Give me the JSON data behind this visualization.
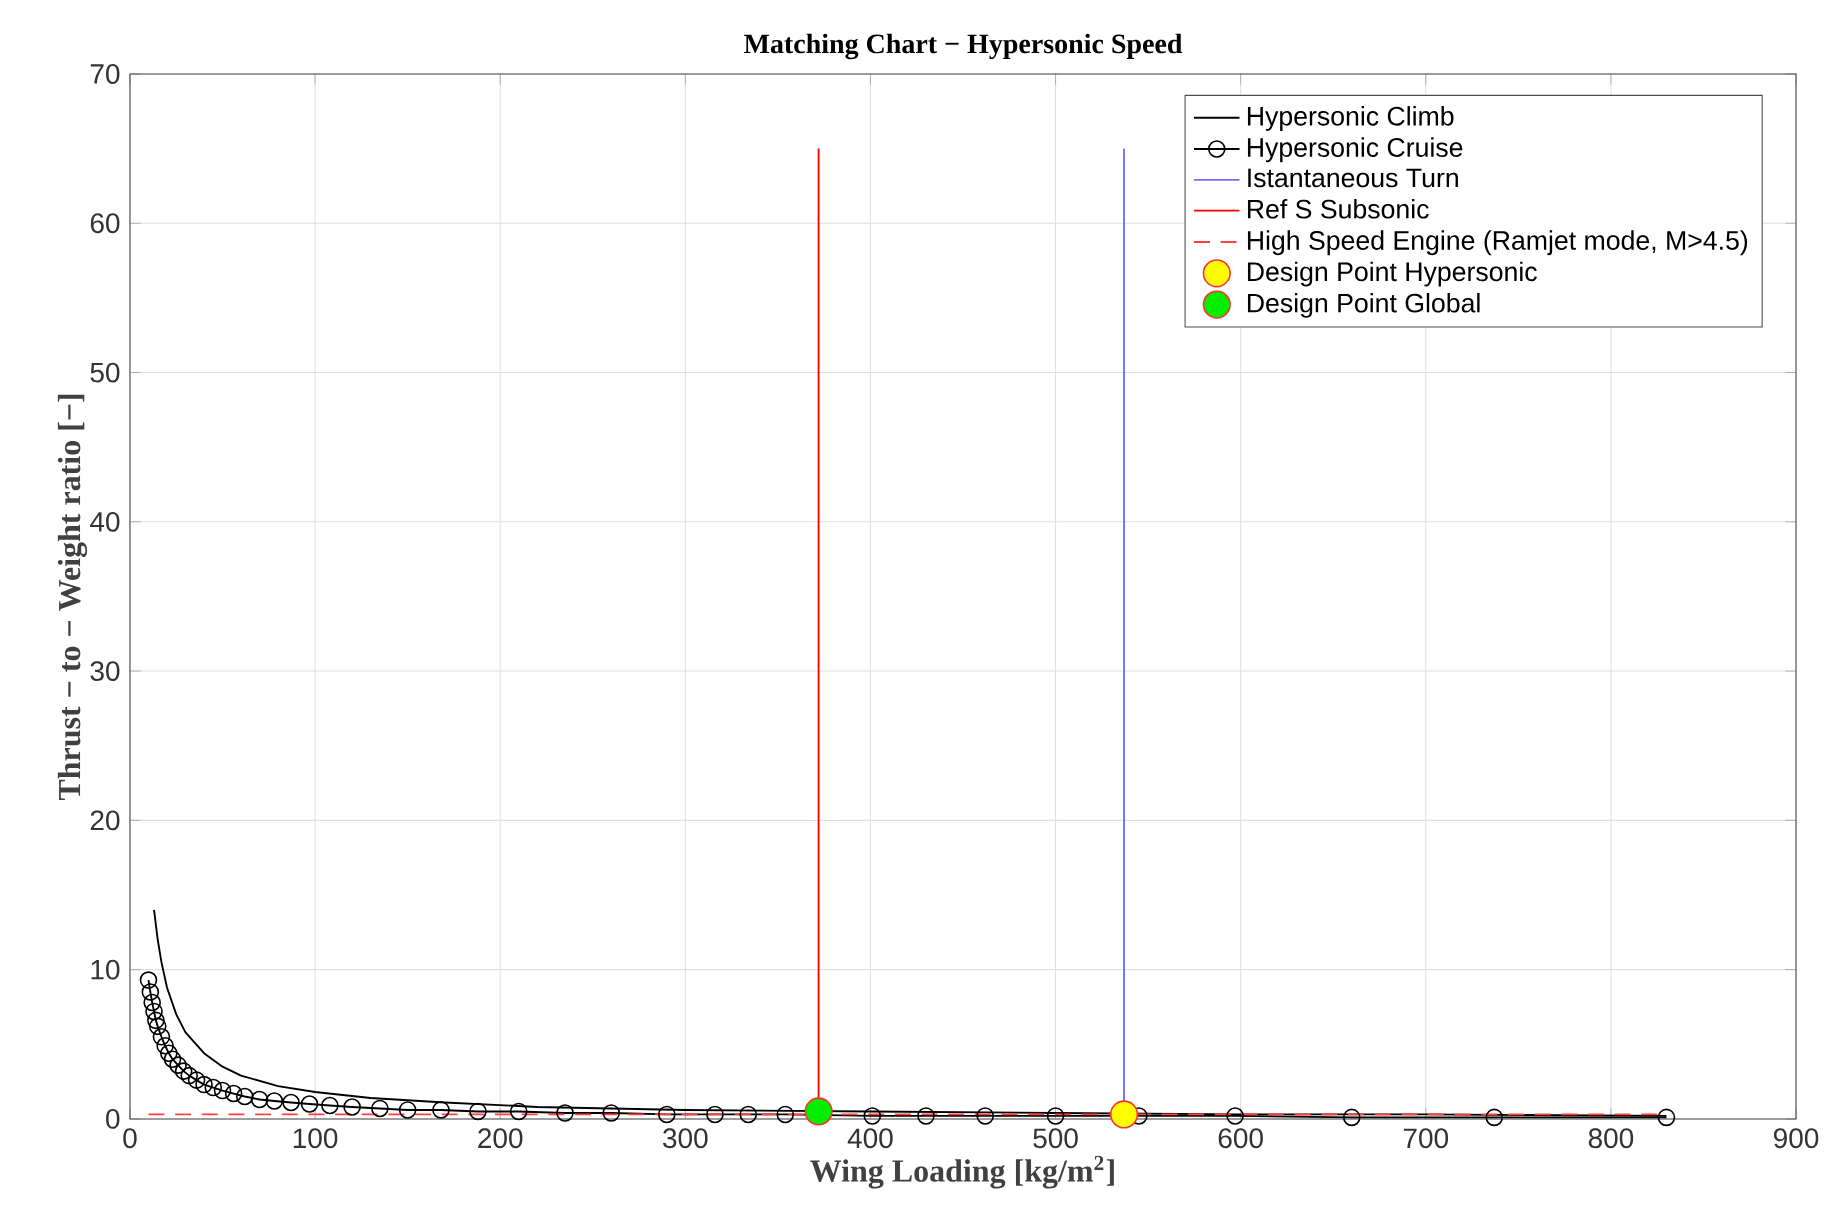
{
  "chart_data": {
    "type": "line",
    "title": "Matching Chart − Hypersonic Speed",
    "xlabel": "Wing Loading [kg/m$^{2}$]",
    "ylabel": "Thrust − to − Weight ratio [−]",
    "xlim": [
      0,
      900
    ],
    "xticks": [
      0,
      100,
      200,
      300,
      400,
      500,
      600,
      700,
      800,
      900
    ],
    "ylim": [
      0,
      70
    ],
    "yticks": [
      0,
      10,
      20,
      30,
      40,
      50,
      60,
      70
    ],
    "grid": true,
    "legend": "top right",
    "series": [
      {
        "name": "Hypersonic Climb",
        "color": "#000000",
        "line_style": "solid",
        "x": [
          13,
          15,
          17,
          20,
          25,
          30,
          40,
          50,
          60,
          80,
          100,
          130,
          170,
          220,
          300,
          400,
          500,
          600,
          700,
          830
        ],
        "values": [
          14,
          12,
          10.5,
          8.8,
          7.0,
          5.8,
          4.4,
          3.5,
          2.9,
          2.2,
          1.8,
          1.4,
          1.1,
          0.8,
          0.6,
          0.5,
          0.4,
          0.3,
          0.3,
          0.2
        ]
      },
      {
        "name": "Hypersonic Cruise",
        "color": "#000000",
        "line_style": "solid",
        "marker": "circle",
        "x": [
          10,
          11,
          12,
          13,
          14,
          15,
          17,
          19,
          21,
          23,
          26,
          29,
          32,
          36,
          40,
          45,
          50,
          56,
          62,
          70,
          78,
          87,
          97,
          108,
          120,
          135,
          150,
          168,
          188,
          210,
          235,
          260,
          290,
          316,
          334,
          354,
          376,
          401,
          430,
          462,
          500,
          545,
          597,
          660,
          737,
          830
        ],
        "values": [
          9.3,
          8.5,
          7.8,
          7.2,
          6.6,
          6.2,
          5.5,
          4.9,
          4.4,
          4.0,
          3.6,
          3.2,
          2.9,
          2.6,
          2.3,
          2.1,
          1.9,
          1.7,
          1.5,
          1.3,
          1.2,
          1.1,
          1.0,
          0.9,
          0.8,
          0.7,
          0.6,
          0.6,
          0.5,
          0.5,
          0.4,
          0.4,
          0.3,
          0.3,
          0.3,
          0.3,
          null,
          0.2,
          0.2,
          0.2,
          0.2,
          0.2,
          0.2,
          0.1,
          0.1,
          0.1
        ]
      },
      {
        "name": "Istantaneous Turn",
        "color": "#6e6eff",
        "line_style": "solid",
        "x": [
          537,
          537
        ],
        "values": [
          0,
          65
        ]
      },
      {
        "name": "Ref S Subsonic",
        "color": "#ff0000",
        "line_style": "solid",
        "x": [
          372,
          372
        ],
        "values": [
          0,
          65
        ]
      },
      {
        "name": "High Speed Engine (Ramjet mode, M>4.5)",
        "color": "#ff4040",
        "line_style": "dashed",
        "x": [
          10,
          830
        ],
        "values": [
          0.3,
          0.3
        ]
      },
      {
        "name": "Design Point Hypersonic",
        "type": "scatter",
        "color": "#ffff00",
        "marker": "circle",
        "x": [
          537
        ],
        "values": [
          0.3
        ]
      },
      {
        "name": "Design Point Global",
        "type": "scatter",
        "color": "#00ee00",
        "marker": "circle",
        "x": [
          372
        ],
        "values": [
          0.5
        ]
      }
    ]
  }
}
